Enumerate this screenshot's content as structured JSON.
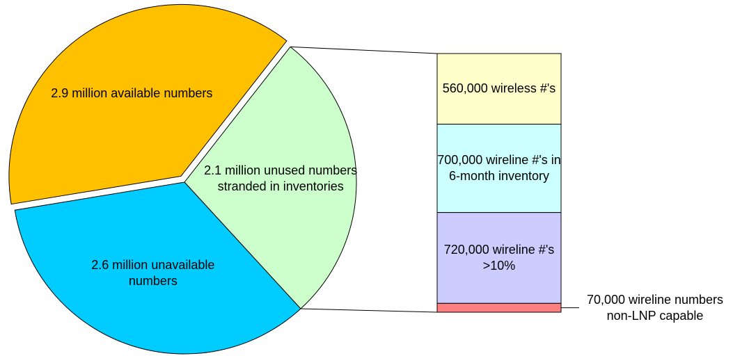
{
  "chart_data": {
    "type": "bar-of-pie",
    "pie": {
      "values": [
        2100000,
        2600000,
        2900000
      ],
      "value_labels": [
        "2.1 million unused numbers stranded in inventories",
        "2.6 million unavailable numbers",
        "2.9 million available numbers"
      ],
      "colors": [
        "#ccffcc",
        "#00ccff",
        "#ffc000"
      ]
    },
    "bar": {
      "values": [
        560000,
        700000,
        720000,
        70000
      ],
      "value_labels": [
        "560,000 wireless #'s",
        "700,000 wireline #'s in 6-month inventory",
        "720,000 wireline #'s >10%",
        "70,000 wireline numbers non-LNP capable"
      ],
      "colors": [
        "#ffffcc",
        "#ccffff",
        "#ccccff",
        "#ff8080"
      ]
    }
  }
}
